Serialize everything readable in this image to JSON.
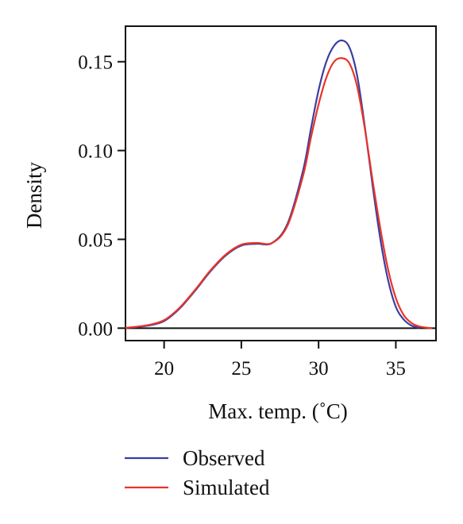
{
  "chart_data": {
    "type": "line",
    "title": "",
    "xlabel": "Max. temp. (˚C)",
    "ylabel": "Density",
    "xlim": [
      17.5,
      37.6
    ],
    "ylim": [
      -0.007,
      0.17
    ],
    "xticks": [
      20,
      25,
      30,
      35
    ],
    "xtick_labels": [
      "20",
      "25",
      "30",
      "35"
    ],
    "yticks": [
      0.0,
      0.05,
      0.1,
      0.15
    ],
    "ytick_labels": [
      "0.00",
      "0.05",
      "0.10",
      "0.15"
    ],
    "baseline": 0,
    "grid": false,
    "legend_position": "bottom-left, below plot",
    "series": [
      {
        "name": "Observed",
        "color": "#3b3fa0",
        "x": [
          18,
          19,
          20,
          21,
          22,
          23,
          24,
          25,
          26,
          27,
          28,
          29,
          29.5,
          30,
          30.5,
          31,
          31.5,
          32,
          32.5,
          33,
          33.5,
          34,
          34.5,
          35,
          35.5,
          36,
          36.5
        ],
        "y": [
          0.0005,
          0.0015,
          0.004,
          0.011,
          0.021,
          0.032,
          0.041,
          0.0465,
          0.0475,
          0.048,
          0.059,
          0.089,
          0.112,
          0.134,
          0.15,
          0.159,
          0.162,
          0.158,
          0.142,
          0.113,
          0.08,
          0.05,
          0.027,
          0.012,
          0.005,
          0.0015,
          0.0003
        ]
      },
      {
        "name": "Simulated",
        "color": "#e8342a",
        "x": [
          17.5,
          18,
          19,
          20,
          21,
          22,
          23,
          24,
          25,
          26,
          27,
          28,
          29,
          29.5,
          30,
          30.5,
          31,
          31.5,
          32,
          32.5,
          33,
          33.5,
          34,
          34.5,
          35,
          35.5,
          36,
          36.5,
          37,
          37.3
        ],
        "y": [
          0.0002,
          0.0006,
          0.0018,
          0.0045,
          0.0115,
          0.0215,
          0.0325,
          0.0415,
          0.047,
          0.048,
          0.048,
          0.058,
          0.086,
          0.107,
          0.126,
          0.141,
          0.15,
          0.152,
          0.149,
          0.136,
          0.112,
          0.083,
          0.056,
          0.033,
          0.017,
          0.0075,
          0.003,
          0.001,
          0.0003,
          0.0001
        ]
      }
    ]
  }
}
